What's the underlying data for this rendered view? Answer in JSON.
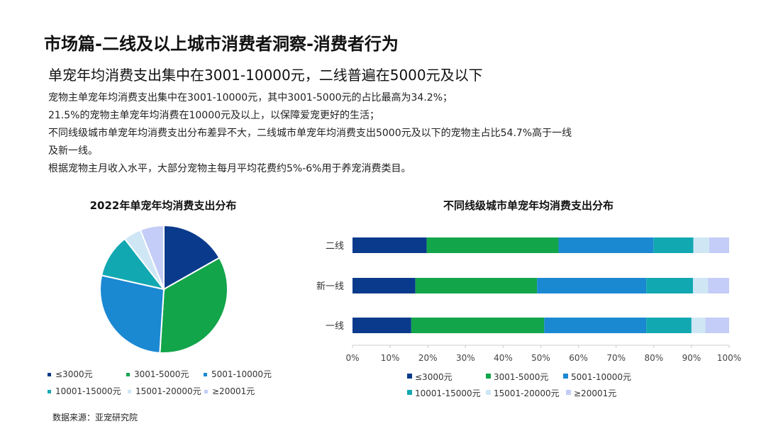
{
  "header": {
    "title": "市场篇-二线及以上城市消费者洞察-消费者行为",
    "subtitle": "单宠年均消费支出集中在3001-10000元，二线普遍在5000元及以下"
  },
  "body": {
    "paragraphs": [
      "宠物主单宠年均消费支出集中在3001-10000元，其中3001-5000元的占比最高为34.2%；",
      "21.5%的宠物主单宠年均消费在10000元及以上，以保障爱宠更好的生活；",
      "不同线级城市单宠年均消费支出分布差异不大，二线城市单宠年均消费支出5000元及以下的宠物主占比54.7%高于一线",
      "及新一线。",
      "根据宠物主月收入水平，大部分宠物主每月平均花费约5%-6%用于养宠消费类目。"
    ]
  },
  "colors": {
    "c1": "#0a3a8c",
    "c2": "#12a54a",
    "c3": "#1b88d2",
    "c4": "#12a8b2",
    "c5": "#cfe6f5",
    "c6": "#c3cdf7"
  },
  "chart_data": [
    {
      "type": "pie",
      "title": "2022年单宠年均消费支出分布",
      "legend_position": "bottom",
      "categories": [
        "≤3000元",
        "3001-5000元",
        "5001-10000元",
        "10001-15000元",
        "15001-20000元",
        "≥20001元"
      ],
      "values": [
        16.8,
        34.2,
        27.5,
        11.0,
        4.5,
        6.0
      ]
    },
    {
      "type": "bar",
      "orientation": "horizontal",
      "stacked": true,
      "title": "不同线级城市单宠年均消费支出分布",
      "legend_position": "bottom",
      "categories": [
        "二线",
        "新一线",
        "一线"
      ],
      "x_ticks": [
        "0%",
        "10%",
        "20%",
        "30%",
        "40%",
        "50%",
        "60%",
        "70%",
        "80%",
        "90%",
        "100%"
      ],
      "xlim": [
        0,
        100
      ],
      "series": [
        {
          "name": "≤3000元",
          "values": [
            19.7,
            16.7,
            15.6
          ]
        },
        {
          "name": "3001-5000元",
          "values": [
            35.0,
            32.3,
            35.3
          ]
        },
        {
          "name": "5001-10000元",
          "values": [
            25.2,
            29.0,
            27.1
          ]
        },
        {
          "name": "10001-15000元",
          "values": [
            10.6,
            12.4,
            12.0
          ]
        },
        {
          "name": "15001-20000元",
          "values": [
            4.2,
            4.0,
            3.7
          ]
        },
        {
          "name": "≥20001元",
          "values": [
            5.3,
            5.6,
            6.3
          ]
        }
      ]
    }
  ],
  "source": "数据来源：亚宠研究院"
}
